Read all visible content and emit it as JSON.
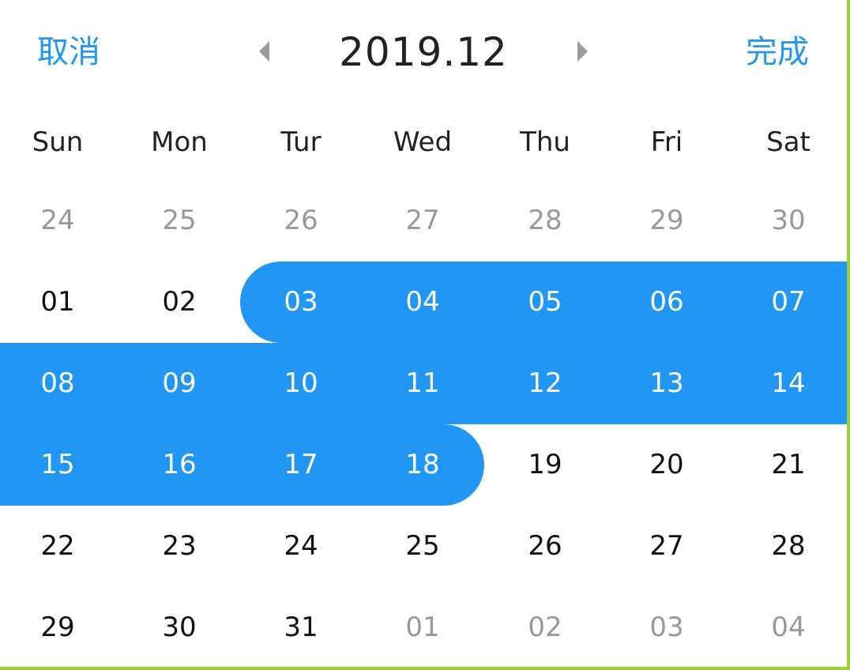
{
  "header": {
    "cancel_label": "取消",
    "title": "2019.12",
    "done_label": "完成"
  },
  "colors": {
    "accent": "#2196F3",
    "text": "#111111",
    "muted": "#999999",
    "selected_text": "#FFFFFF",
    "border": "#9DD13B"
  },
  "icons": {
    "prev": "caret-left-icon",
    "next": "caret-right-icon"
  },
  "weekdays": [
    "Sun",
    "Mon",
    "Tur",
    "Wed",
    "Thu",
    "Fri",
    "Sat"
  ],
  "weeks": [
    [
      {
        "label": "24",
        "state": "other"
      },
      {
        "label": "25",
        "state": "other"
      },
      {
        "label": "26",
        "state": "other"
      },
      {
        "label": "27",
        "state": "other"
      },
      {
        "label": "28",
        "state": "other"
      },
      {
        "label": "29",
        "state": "other"
      },
      {
        "label": "30",
        "state": "other"
      }
    ],
    [
      {
        "label": "01",
        "state": "normal"
      },
      {
        "label": "02",
        "state": "normal"
      },
      {
        "label": "03",
        "state": "selected"
      },
      {
        "label": "04",
        "state": "selected"
      },
      {
        "label": "05",
        "state": "selected"
      },
      {
        "label": "06",
        "state": "selected"
      },
      {
        "label": "07",
        "state": "selected"
      }
    ],
    [
      {
        "label": "08",
        "state": "selected"
      },
      {
        "label": "09",
        "state": "selected"
      },
      {
        "label": "10",
        "state": "selected"
      },
      {
        "label": "11",
        "state": "selected"
      },
      {
        "label": "12",
        "state": "selected"
      },
      {
        "label": "13",
        "state": "selected"
      },
      {
        "label": "14",
        "state": "selected"
      }
    ],
    [
      {
        "label": "15",
        "state": "selected"
      },
      {
        "label": "16",
        "state": "selected"
      },
      {
        "label": "17",
        "state": "selected"
      },
      {
        "label": "18",
        "state": "selected"
      },
      {
        "label": "19",
        "state": "normal"
      },
      {
        "label": "20",
        "state": "normal"
      },
      {
        "label": "21",
        "state": "normal"
      }
    ],
    [
      {
        "label": "22",
        "state": "normal"
      },
      {
        "label": "23",
        "state": "normal"
      },
      {
        "label": "24",
        "state": "normal"
      },
      {
        "label": "25",
        "state": "normal"
      },
      {
        "label": "26",
        "state": "normal"
      },
      {
        "label": "27",
        "state": "normal"
      },
      {
        "label": "28",
        "state": "normal"
      }
    ],
    [
      {
        "label": "29",
        "state": "normal"
      },
      {
        "label": "30",
        "state": "normal"
      },
      {
        "label": "31",
        "state": "normal"
      },
      {
        "label": "01",
        "state": "other"
      },
      {
        "label": "02",
        "state": "other"
      },
      {
        "label": "03",
        "state": "other"
      },
      {
        "label": "04",
        "state": "other"
      }
    ]
  ]
}
